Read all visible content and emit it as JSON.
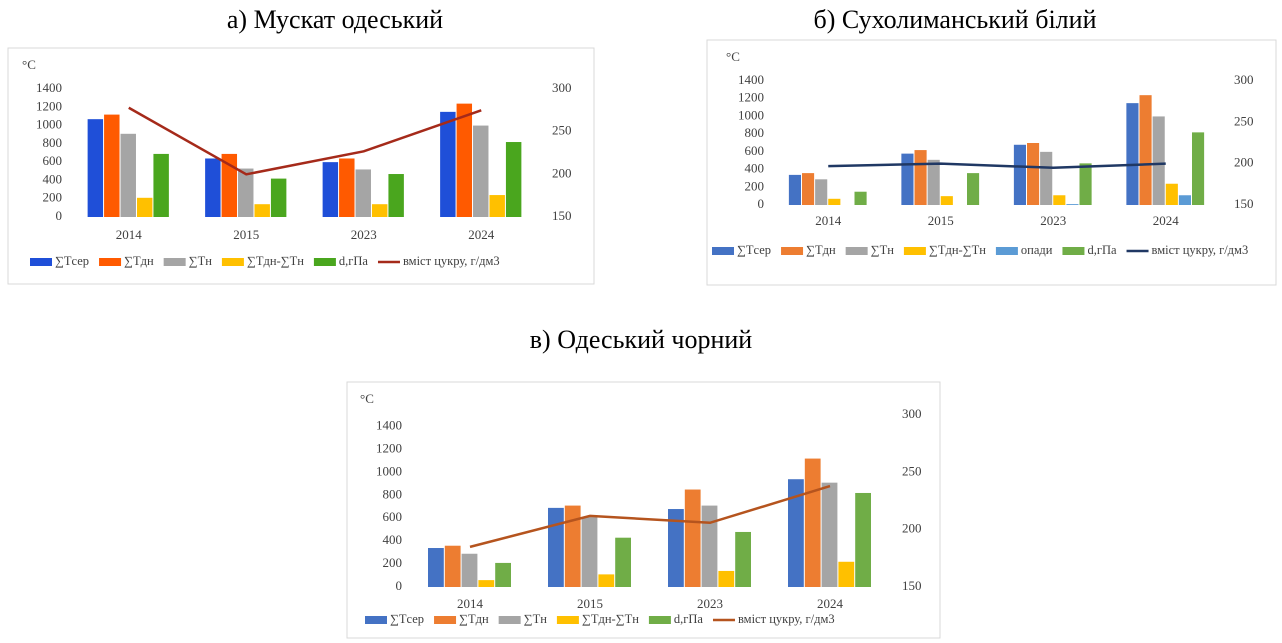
{
  "chart_data": [
    {
      "type": "bar",
      "title": "а) Мускат одеський",
      "y_label": "°C",
      "categories": [
        "2014",
        "2015",
        "2023",
        "2024"
      ],
      "series": [
        {
          "name": "∑Tсер",
          "color": "#1f4fd8",
          "values": [
            1070,
            640,
            600,
            1150
          ]
        },
        {
          "name": "∑Tдн",
          "color": "#ff5a00",
          "values": [
            1120,
            690,
            640,
            1240
          ]
        },
        {
          "name": "∑Tн",
          "color": "#a5a5a5",
          "values": [
            910,
            530,
            520,
            1000
          ]
        },
        {
          "name": "∑Tдн-∑Tн",
          "color": "#ffc000",
          "values": [
            210,
            140,
            140,
            240
          ]
        },
        {
          "name": "d,гПа",
          "color": "#4aa61e",
          "values": [
            690,
            420,
            470,
            820
          ]
        },
        {
          "name": "вміст цукру, г/дм3",
          "color": "#a52a1a",
          "type": "line",
          "axis": "y2",
          "values": [
            278,
            200,
            227,
            275
          ]
        }
      ],
      "ylim": [
        0,
        1400
      ],
      "yticks": [
        0,
        200,
        400,
        600,
        800,
        1000,
        1200,
        1400
      ],
      "y2lim": [
        150,
        300
      ],
      "y2ticks": [
        150,
        200,
        250,
        300
      ],
      "grid": false,
      "legend": "bottom"
    },
    {
      "type": "bar",
      "title": "б) Сухолиманський білий",
      "y_label": "°C",
      "categories": [
        "2014",
        "2015",
        "2023",
        "2024"
      ],
      "series": [
        {
          "name": "∑Tсер",
          "color": "#4472c4",
          "values": [
            340,
            580,
            680,
            1150
          ]
        },
        {
          "name": "∑Tдн",
          "color": "#ed7d31",
          "values": [
            360,
            620,
            700,
            1240
          ]
        },
        {
          "name": "∑Tн",
          "color": "#a5a5a5",
          "values": [
            290,
            510,
            600,
            1000
          ]
        },
        {
          "name": "∑Tдн-∑Tн",
          "color": "#ffc000",
          "values": [
            70,
            100,
            110,
            240
          ]
        },
        {
          "name": "опади",
          "color": "#5b9bd5",
          "values": [
            0,
            0,
            10,
            110
          ]
        },
        {
          "name": "d,гПа",
          "color": "#70ad47",
          "values": [
            150,
            360,
            470,
            820
          ]
        },
        {
          "name": "вміст цукру, г/дм3",
          "color": "#203864",
          "type": "line",
          "axis": "y2",
          "values": [
            197,
            200,
            195,
            200
          ]
        }
      ],
      "ylim": [
        0,
        1400
      ],
      "yticks": [
        0,
        200,
        400,
        600,
        800,
        1000,
        1200,
        1400
      ],
      "y2lim": [
        150,
        300
      ],
      "y2ticks": [
        150,
        200,
        250,
        300
      ],
      "grid": false,
      "legend": "bottom"
    },
    {
      "type": "bar",
      "title": "в) Одеський чорний",
      "y_label": "°C",
      "categories": [
        "2014",
        "2015",
        "2023",
        "2024"
      ],
      "series": [
        {
          "name": "∑Tсер",
          "color": "#4472c4",
          "values": [
            340,
            690,
            680,
            940
          ]
        },
        {
          "name": "∑Tдн",
          "color": "#ed7d31",
          "values": [
            360,
            710,
            850,
            1120
          ]
        },
        {
          "name": "∑Tн",
          "color": "#a5a5a5",
          "values": [
            290,
            610,
            710,
            910
          ]
        },
        {
          "name": "∑Tдн-∑Tн",
          "color": "#ffc000",
          "values": [
            60,
            110,
            140,
            220
          ]
        },
        {
          "name": "d,гПа",
          "color": "#70ad47",
          "values": [
            210,
            430,
            480,
            820
          ]
        },
        {
          "name": "вміст цукру, г/дм3",
          "color": "#b5541e",
          "type": "line",
          "axis": "y2",
          "values": [
            185,
            212,
            206,
            238
          ]
        }
      ],
      "ylim": [
        0,
        1500
      ],
      "yticks": [
        0,
        200,
        400,
        600,
        800,
        1000,
        1200,
        1400
      ],
      "y2lim": [
        150,
        300
      ],
      "y2ticks": [
        150,
        200,
        250,
        300
      ],
      "grid": false,
      "legend": "bottom"
    }
  ]
}
